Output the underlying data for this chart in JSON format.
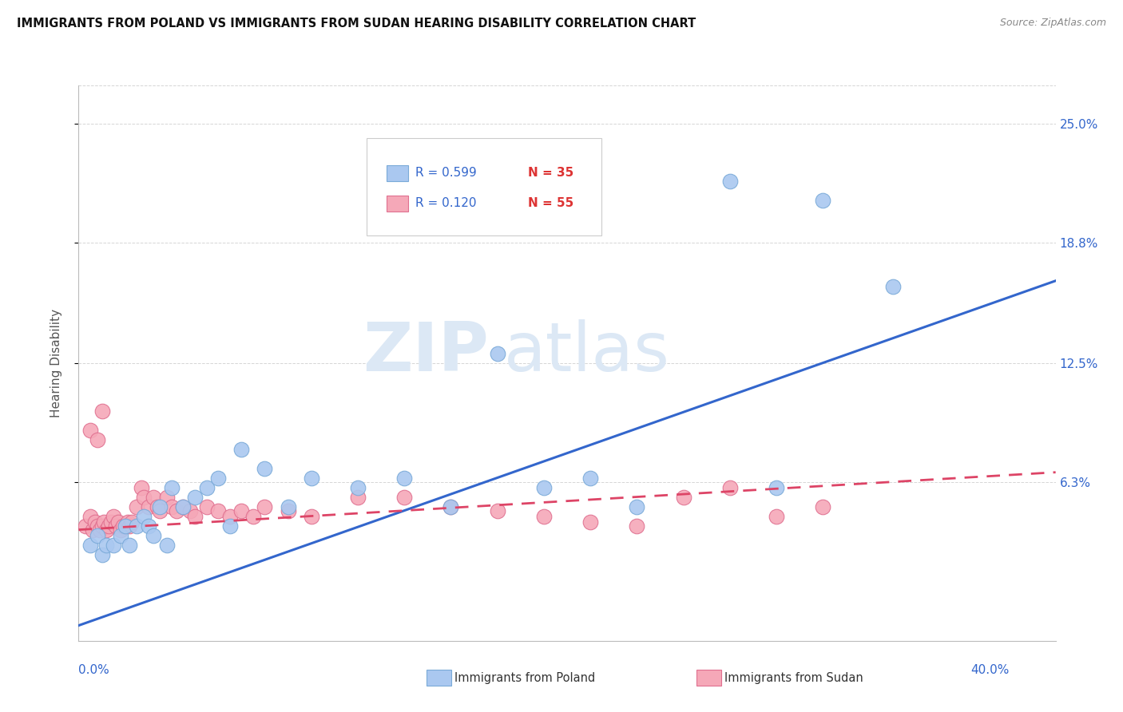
{
  "title": "IMMIGRANTS FROM POLAND VS IMMIGRANTS FROM SUDAN HEARING DISABILITY CORRELATION CHART",
  "source": "Source: ZipAtlas.com",
  "ylabel": "Hearing Disability",
  "ytick_labels": [
    "25.0%",
    "18.8%",
    "12.5%",
    "6.3%"
  ],
  "ytick_values": [
    0.25,
    0.188,
    0.125,
    0.063
  ],
  "xlim": [
    0.0,
    0.42
  ],
  "ylim": [
    -0.02,
    0.27
  ],
  "legend_r1": "R = 0.599",
  "legend_n1": "N = 35",
  "legend_r2": "R = 0.120",
  "legend_n2": "N = 55",
  "poland_color": "#aac8f0",
  "poland_edge": "#7aaad8",
  "sudan_color": "#f5a8b8",
  "sudan_edge": "#e07090",
  "poland_line_color": "#3366cc",
  "sudan_line_color": "#dd4466",
  "poland_scatter_x": [
    0.005,
    0.008,
    0.01,
    0.012,
    0.015,
    0.018,
    0.02,
    0.022,
    0.025,
    0.028,
    0.03,
    0.032,
    0.035,
    0.038,
    0.04,
    0.045,
    0.05,
    0.055,
    0.06,
    0.065,
    0.07,
    0.08,
    0.09,
    0.1,
    0.12,
    0.14,
    0.16,
    0.18,
    0.2,
    0.22,
    0.24,
    0.28,
    0.3,
    0.32,
    0.35
  ],
  "poland_scatter_y": [
    0.03,
    0.035,
    0.025,
    0.03,
    0.03,
    0.035,
    0.04,
    0.03,
    0.04,
    0.045,
    0.04,
    0.035,
    0.05,
    0.03,
    0.06,
    0.05,
    0.055,
    0.06,
    0.065,
    0.04,
    0.08,
    0.07,
    0.05,
    0.065,
    0.06,
    0.065,
    0.05,
    0.13,
    0.06,
    0.065,
    0.05,
    0.22,
    0.06,
    0.21,
    0.165
  ],
  "sudan_scatter_x": [
    0.003,
    0.005,
    0.006,
    0.007,
    0.008,
    0.009,
    0.01,
    0.011,
    0.012,
    0.013,
    0.014,
    0.015,
    0.016,
    0.017,
    0.018,
    0.019,
    0.02,
    0.021,
    0.022,
    0.023,
    0.025,
    0.027,
    0.028,
    0.03,
    0.032,
    0.034,
    0.035,
    0.038,
    0.04,
    0.042,
    0.045,
    0.048,
    0.05,
    0.055,
    0.06,
    0.065,
    0.07,
    0.075,
    0.08,
    0.09,
    0.1,
    0.12,
    0.14,
    0.16,
    0.18,
    0.2,
    0.22,
    0.24,
    0.26,
    0.28,
    0.3,
    0.32,
    0.005,
    0.008,
    0.01
  ],
  "sudan_scatter_y": [
    0.04,
    0.045,
    0.038,
    0.042,
    0.04,
    0.038,
    0.04,
    0.042,
    0.038,
    0.04,
    0.042,
    0.045,
    0.04,
    0.042,
    0.038,
    0.04,
    0.04,
    0.042,
    0.04,
    0.042,
    0.05,
    0.06,
    0.055,
    0.05,
    0.055,
    0.05,
    0.048,
    0.055,
    0.05,
    0.048,
    0.05,
    0.048,
    0.045,
    0.05,
    0.048,
    0.045,
    0.048,
    0.045,
    0.05,
    0.048,
    0.045,
    0.055,
    0.055,
    0.05,
    0.048,
    0.045,
    0.042,
    0.04,
    0.055,
    0.06,
    0.045,
    0.05,
    0.09,
    0.085,
    0.1
  ],
  "poland_trendline_x": [
    0.0,
    0.42
  ],
  "poland_trendline_y": [
    -0.012,
    0.168
  ],
  "sudan_trendline_x": [
    0.0,
    0.42
  ],
  "sudan_trendline_y": [
    0.038,
    0.068
  ],
  "watermark_zip": "ZIP",
  "watermark_atlas": "atlas",
  "background_color": "#ffffff",
  "grid_color": "#cccccc"
}
